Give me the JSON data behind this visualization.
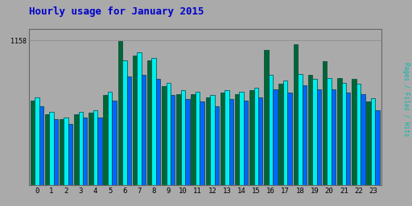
{
  "title": "Hourly usage for January 2015",
  "ylabel_right": "Pages / Files / Hits",
  "hours": [
    0,
    1,
    2,
    3,
    4,
    5,
    6,
    7,
    8,
    9,
    10,
    11,
    12,
    13,
    14,
    15,
    16,
    17,
    18,
    19,
    20,
    21,
    22,
    23
  ],
  "hits": [
    680,
    570,
    530,
    570,
    580,
    720,
    1150,
    1040,
    1000,
    790,
    730,
    730,
    700,
    740,
    730,
    760,
    1080,
    810,
    1130,
    880,
    990,
    860,
    850,
    670
  ],
  "files": [
    700,
    590,
    545,
    590,
    600,
    750,
    1000,
    1060,
    1020,
    820,
    760,
    750,
    720,
    760,
    750,
    780,
    880,
    840,
    890,
    850,
    860,
    820,
    810,
    695
  ],
  "pages": [
    630,
    530,
    490,
    540,
    545,
    680,
    870,
    880,
    850,
    720,
    690,
    670,
    630,
    690,
    680,
    700,
    770,
    740,
    800,
    770,
    770,
    740,
    730,
    600
  ],
  "color_hits": "#006633",
  "color_files": "#00eeee",
  "color_pages": "#0066ff",
  "bg_outer": "#aaaaaa",
  "bg_plot": "#aaaaaa",
  "title_color": "#0000cc",
  "ylabel_color": "#00bbaa",
  "ymax": 1250,
  "ymin": 0,
  "ytick_val": 1158,
  "bar_edge_color": "#004444",
  "bar_edge_width": 0.5
}
